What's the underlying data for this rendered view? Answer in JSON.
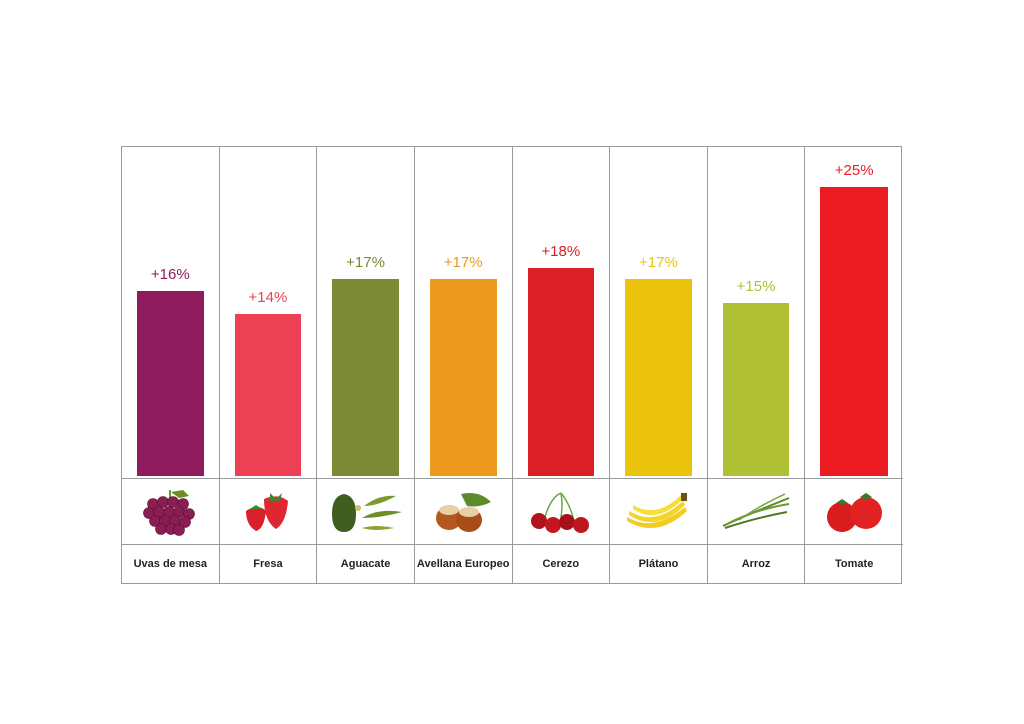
{
  "chart_data": {
    "type": "bar",
    "title": "",
    "xlabel": "",
    "ylabel": "",
    "ylim": [
      0,
      25
    ],
    "categories": [
      "Uvas de mesa",
      "Fresa",
      "Aguacate",
      "Avellana Europeo",
      "Cerezo",
      "Plátano",
      "Arroz",
      "Tomate"
    ],
    "values": [
      16,
      14,
      17,
      17,
      18,
      17,
      15,
      25
    ],
    "labels": [
      "+16%",
      "+14%",
      "+17%",
      "+17%",
      "+18%",
      "+17%",
      "+15%",
      "+25%"
    ],
    "colors": [
      "#8e1b5c",
      "#ec4055",
      "#7c8a35",
      "#ec991e",
      "#da1f26",
      "#ecc30c",
      "#b0c034",
      "#ec1c24"
    ],
    "icons": [
      "grapes-icon",
      "strawberry-icon",
      "avocado-icon",
      "hazelnut-icon",
      "cherry-icon",
      "banana-icon",
      "rice-icon",
      "tomato-icon"
    ]
  }
}
